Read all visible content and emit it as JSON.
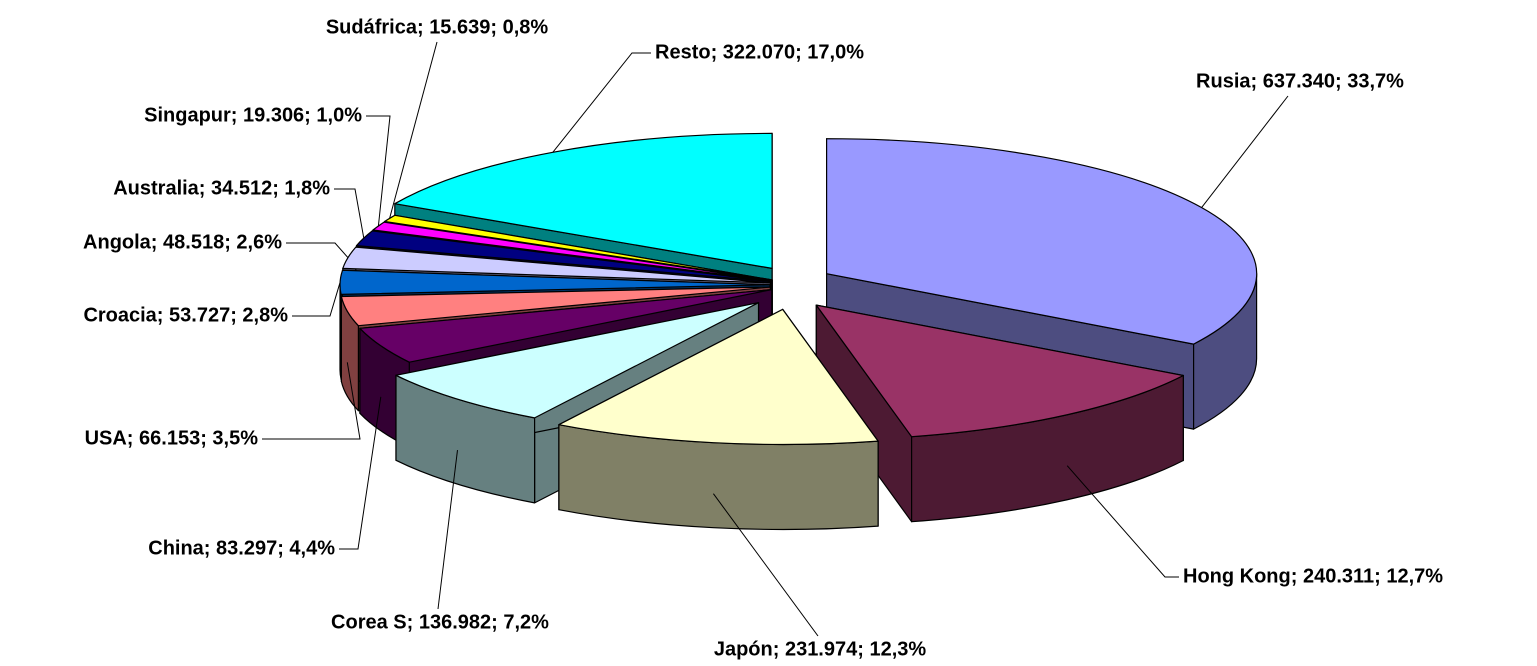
{
  "chart_data": {
    "type": "pie3d",
    "categories": [
      "Rusia",
      "Hong Kong",
      "Japón",
      "Corea S",
      "China",
      "USA",
      "Croacia",
      "Angola",
      "Australia",
      "Singapur",
      "Sudáfrica",
      "Resto"
    ],
    "values": [
      637340,
      240311,
      231974,
      136982,
      83297,
      66153,
      53727,
      48518,
      34512,
      19306,
      15639,
      322070
    ],
    "value_labels": [
      "Rusia; 637.340; 33,7%",
      "Hong Kong; 240.311; 12,7%",
      "Japón; 231.974; 12,3%",
      "Corea S; 136.982; 7,2%",
      "China; 83.297; 4,4%",
      "USA; 66.153; 3,5%",
      "Croacia; 53.727; 2,8%",
      "Angola; 48.518; 2,6%",
      "Australia; 34.512; 1,8%",
      "Singapur; 19.306; 1,0%",
      "Sudáfrica; 15.639; 0,8%",
      "Resto; 322.070; 17,0%"
    ],
    "colors": [
      "#9999FF",
      "#993366",
      "#FFFFCC",
      "#CCFFFF",
      "#660066",
      "#FF8080",
      "#0066CC",
      "#CCCCFF",
      "#000080",
      "#FF00FF",
      "#FFFF00",
      "#00FFFF"
    ]
  }
}
